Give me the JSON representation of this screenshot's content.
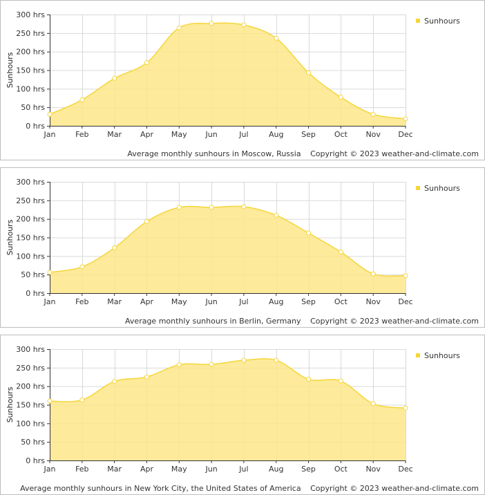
{
  "chart_data": [
    {
      "type": "area",
      "categories": [
        "Jan",
        "Feb",
        "Mar",
        "Apr",
        "May",
        "Jun",
        "Jul",
        "Aug",
        "Sep",
        "Oct",
        "Nov",
        "Dec"
      ],
      "series": [
        {
          "name": "Sunhours",
          "values": [
            31,
            70,
            128,
            170,
            264,
            276,
            272,
            236,
            143,
            77,
            31,
            19
          ]
        }
      ],
      "ylabel": "Sunhours",
      "ylim": [
        0,
        300
      ],
      "yticks": [
        "0 hrs",
        "50 hrs",
        "100 hrs",
        "150 hrs",
        "200 hrs",
        "250 hrs",
        "300 hrs"
      ],
      "footer": "Average monthly sunhours in Moscow, Russia",
      "copyright": "Copyright © 2023  weather-and-climate.com"
    },
    {
      "type": "area",
      "categories": [
        "Jan",
        "Feb",
        "Mar",
        "Apr",
        "May",
        "Jun",
        "Jul",
        "Aug",
        "Sep",
        "Oct",
        "Nov",
        "Dec"
      ],
      "series": [
        {
          "name": "Sunhours",
          "values": [
            56,
            71,
            122,
            193,
            231,
            231,
            233,
            210,
            162,
            111,
            52,
            47
          ]
        }
      ],
      "ylabel": "Sunhours",
      "ylim": [
        0,
        300
      ],
      "yticks": [
        "0 hrs",
        "50 hrs",
        "100 hrs",
        "150 hrs",
        "200 hrs",
        "250 hrs",
        "300 hrs"
      ],
      "footer": "Average monthly sunhours in Berlin, Germany",
      "copyright": "Copyright © 2023  weather-and-climate.com"
    },
    {
      "type": "area",
      "categories": [
        "Jan",
        "Feb",
        "Mar",
        "Apr",
        "May",
        "Jun",
        "Jul",
        "Aug",
        "Sep",
        "Oct",
        "Nov",
        "Dec"
      ],
      "series": [
        {
          "name": "Sunhours",
          "values": [
            160,
            163,
            213,
            225,
            258,
            259,
            270,
            270,
            219,
            214,
            153,
            141
          ]
        }
      ],
      "ylabel": "Sunhours",
      "ylim": [
        0,
        300
      ],
      "yticks": [
        "0 hrs",
        "50 hrs",
        "100 hrs",
        "150 hrs",
        "200 hrs",
        "250 hrs",
        "300 hrs"
      ],
      "footer": "Average monthly sunhours in New York City, the United States of America",
      "copyright": "Copyright © 2023  weather-and-climate.com"
    }
  ],
  "colors": {
    "line": "#f5d63a",
    "fill": "#fde68a",
    "grid": "#d9d9d9",
    "axis": "#333333"
  }
}
